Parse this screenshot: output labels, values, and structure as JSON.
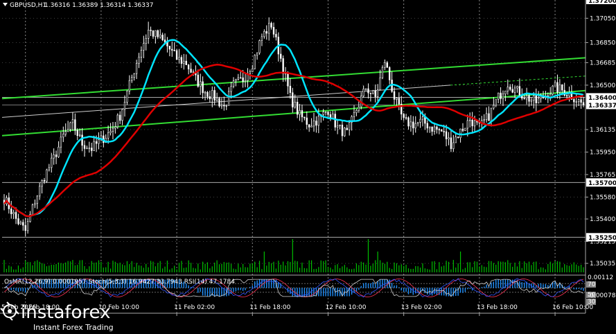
{
  "header": {
    "symbol": "GBPUSD,H1",
    "ohlc": "1.36316 1.36389 1.36314 1.36337"
  },
  "indicators": {
    "label": "OsMA(12,26,9) 0.0001957 Stoch(5,3,3) 16.9427 33.7943 RSI(14) 47.1784"
  },
  "price_tags": [
    {
      "text": "1.36400",
      "value": 1.364,
      "bg": "#ffffff",
      "fg": "#000000"
    },
    {
      "text": "1.36337",
      "value": 1.36337,
      "bg": "#ffffff",
      "fg": "#000000"
    },
    {
      "text": "1.35700",
      "value": 1.357,
      "bg": "#ffffff",
      "fg": "#000000"
    },
    {
      "text": "1.35250",
      "value": 1.3525,
      "bg": "#ffffff",
      "fg": "#000000"
    }
  ],
  "top_tag": "1.37200",
  "oscillator_labels": [
    "0.00112",
    "70",
    "50",
    "30",
    "-0.000783"
  ],
  "branding": {
    "name": "instaforex",
    "tagline": "Instant Forex Trading"
  },
  "colors": {
    "background": "#000000",
    "candles": "#ffffff",
    "ma_red": "#e00000",
    "ma_cyan": "#00e5ff",
    "channel_green": "#33dd33",
    "volume": "#00c000",
    "osma": "#1e90ff",
    "stoch_main": "#3355ff",
    "stoch_signal": "#ff3355",
    "rsi": "#d0d0d0"
  },
  "chart_data": {
    "type": "candlestick",
    "title": "GBPUSD,H1",
    "y_ticks": [
      "1.37050",
      "1.36850",
      "1.36685",
      "1.36500",
      "1.36135",
      "1.35950",
      "1.35765",
      "1.35580",
      "1.35400",
      "1.35215",
      "1.35035"
    ],
    "ylim": [
      1.3495,
      1.372
    ],
    "x_ticks": [
      "9 Feb 18:00",
      "10 Feb 10:00",
      "11 Feb 02:00",
      "11 Feb 18:00",
      "12 Feb 10:00",
      "13 Feb 02:00",
      "13 Feb 18:00",
      "16 Feb 10:00"
    ],
    "x_first_label": "5 Feb 2026",
    "grid": true,
    "close_anchors": [
      [
        0,
        1.3557
      ],
      [
        5,
        1.354
      ],
      [
        9,
        1.353
      ],
      [
        13,
        1.3555
      ],
      [
        17,
        1.3575
      ],
      [
        21,
        1.359
      ],
      [
        25,
        1.3608
      ],
      [
        29,
        1.3618
      ],
      [
        33,
        1.3602
      ],
      [
        37,
        1.3598
      ],
      [
        41,
        1.3605
      ],
      [
        45,
        1.3612
      ],
      [
        49,
        1.3625
      ],
      [
        53,
        1.365
      ],
      [
        57,
        1.3675
      ],
      [
        61,
        1.3695
      ],
      [
        65,
        1.369
      ],
      [
        69,
        1.3682
      ],
      [
        73,
        1.3672
      ],
      [
        77,
        1.3668
      ],
      [
        81,
        1.3655
      ],
      [
        85,
        1.3645
      ],
      [
        89,
        1.364
      ],
      [
        93,
        1.3632
      ],
      [
        97,
        1.365
      ],
      [
        101,
        1.3655
      ],
      [
        105,
        1.3668
      ],
      [
        109,
        1.369
      ],
      [
        113,
        1.37
      ],
      [
        117,
        1.3672
      ],
      [
        121,
        1.364
      ],
      [
        125,
        1.3625
      ],
      [
        129,
        1.3618
      ],
      [
        133,
        1.3622
      ],
      [
        137,
        1.363
      ],
      [
        141,
        1.3615
      ],
      [
        145,
        1.361
      ],
      [
        149,
        1.363
      ],
      [
        153,
        1.3648
      ],
      [
        157,
        1.364
      ],
      [
        161,
        1.367
      ],
      [
        165,
        1.364
      ],
      [
        169,
        1.362
      ],
      [
        173,
        1.3618
      ],
      [
        177,
        1.362
      ],
      [
        181,
        1.3615
      ],
      [
        185,
        1.3612
      ],
      [
        189,
        1.3602
      ],
      [
        193,
        1.3612
      ],
      [
        197,
        1.3622
      ],
      [
        201,
        1.3615
      ],
      [
        205,
        1.3625
      ],
      [
        209,
        1.364
      ],
      [
        213,
        1.3652
      ],
      [
        217,
        1.3645
      ],
      [
        221,
        1.364
      ],
      [
        225,
        1.3636
      ],
      [
        229,
        1.3642
      ],
      [
        233,
        1.3648
      ],
      [
        237,
        1.3645
      ],
      [
        241,
        1.364
      ],
      [
        245,
        1.36337
      ]
    ]
  }
}
